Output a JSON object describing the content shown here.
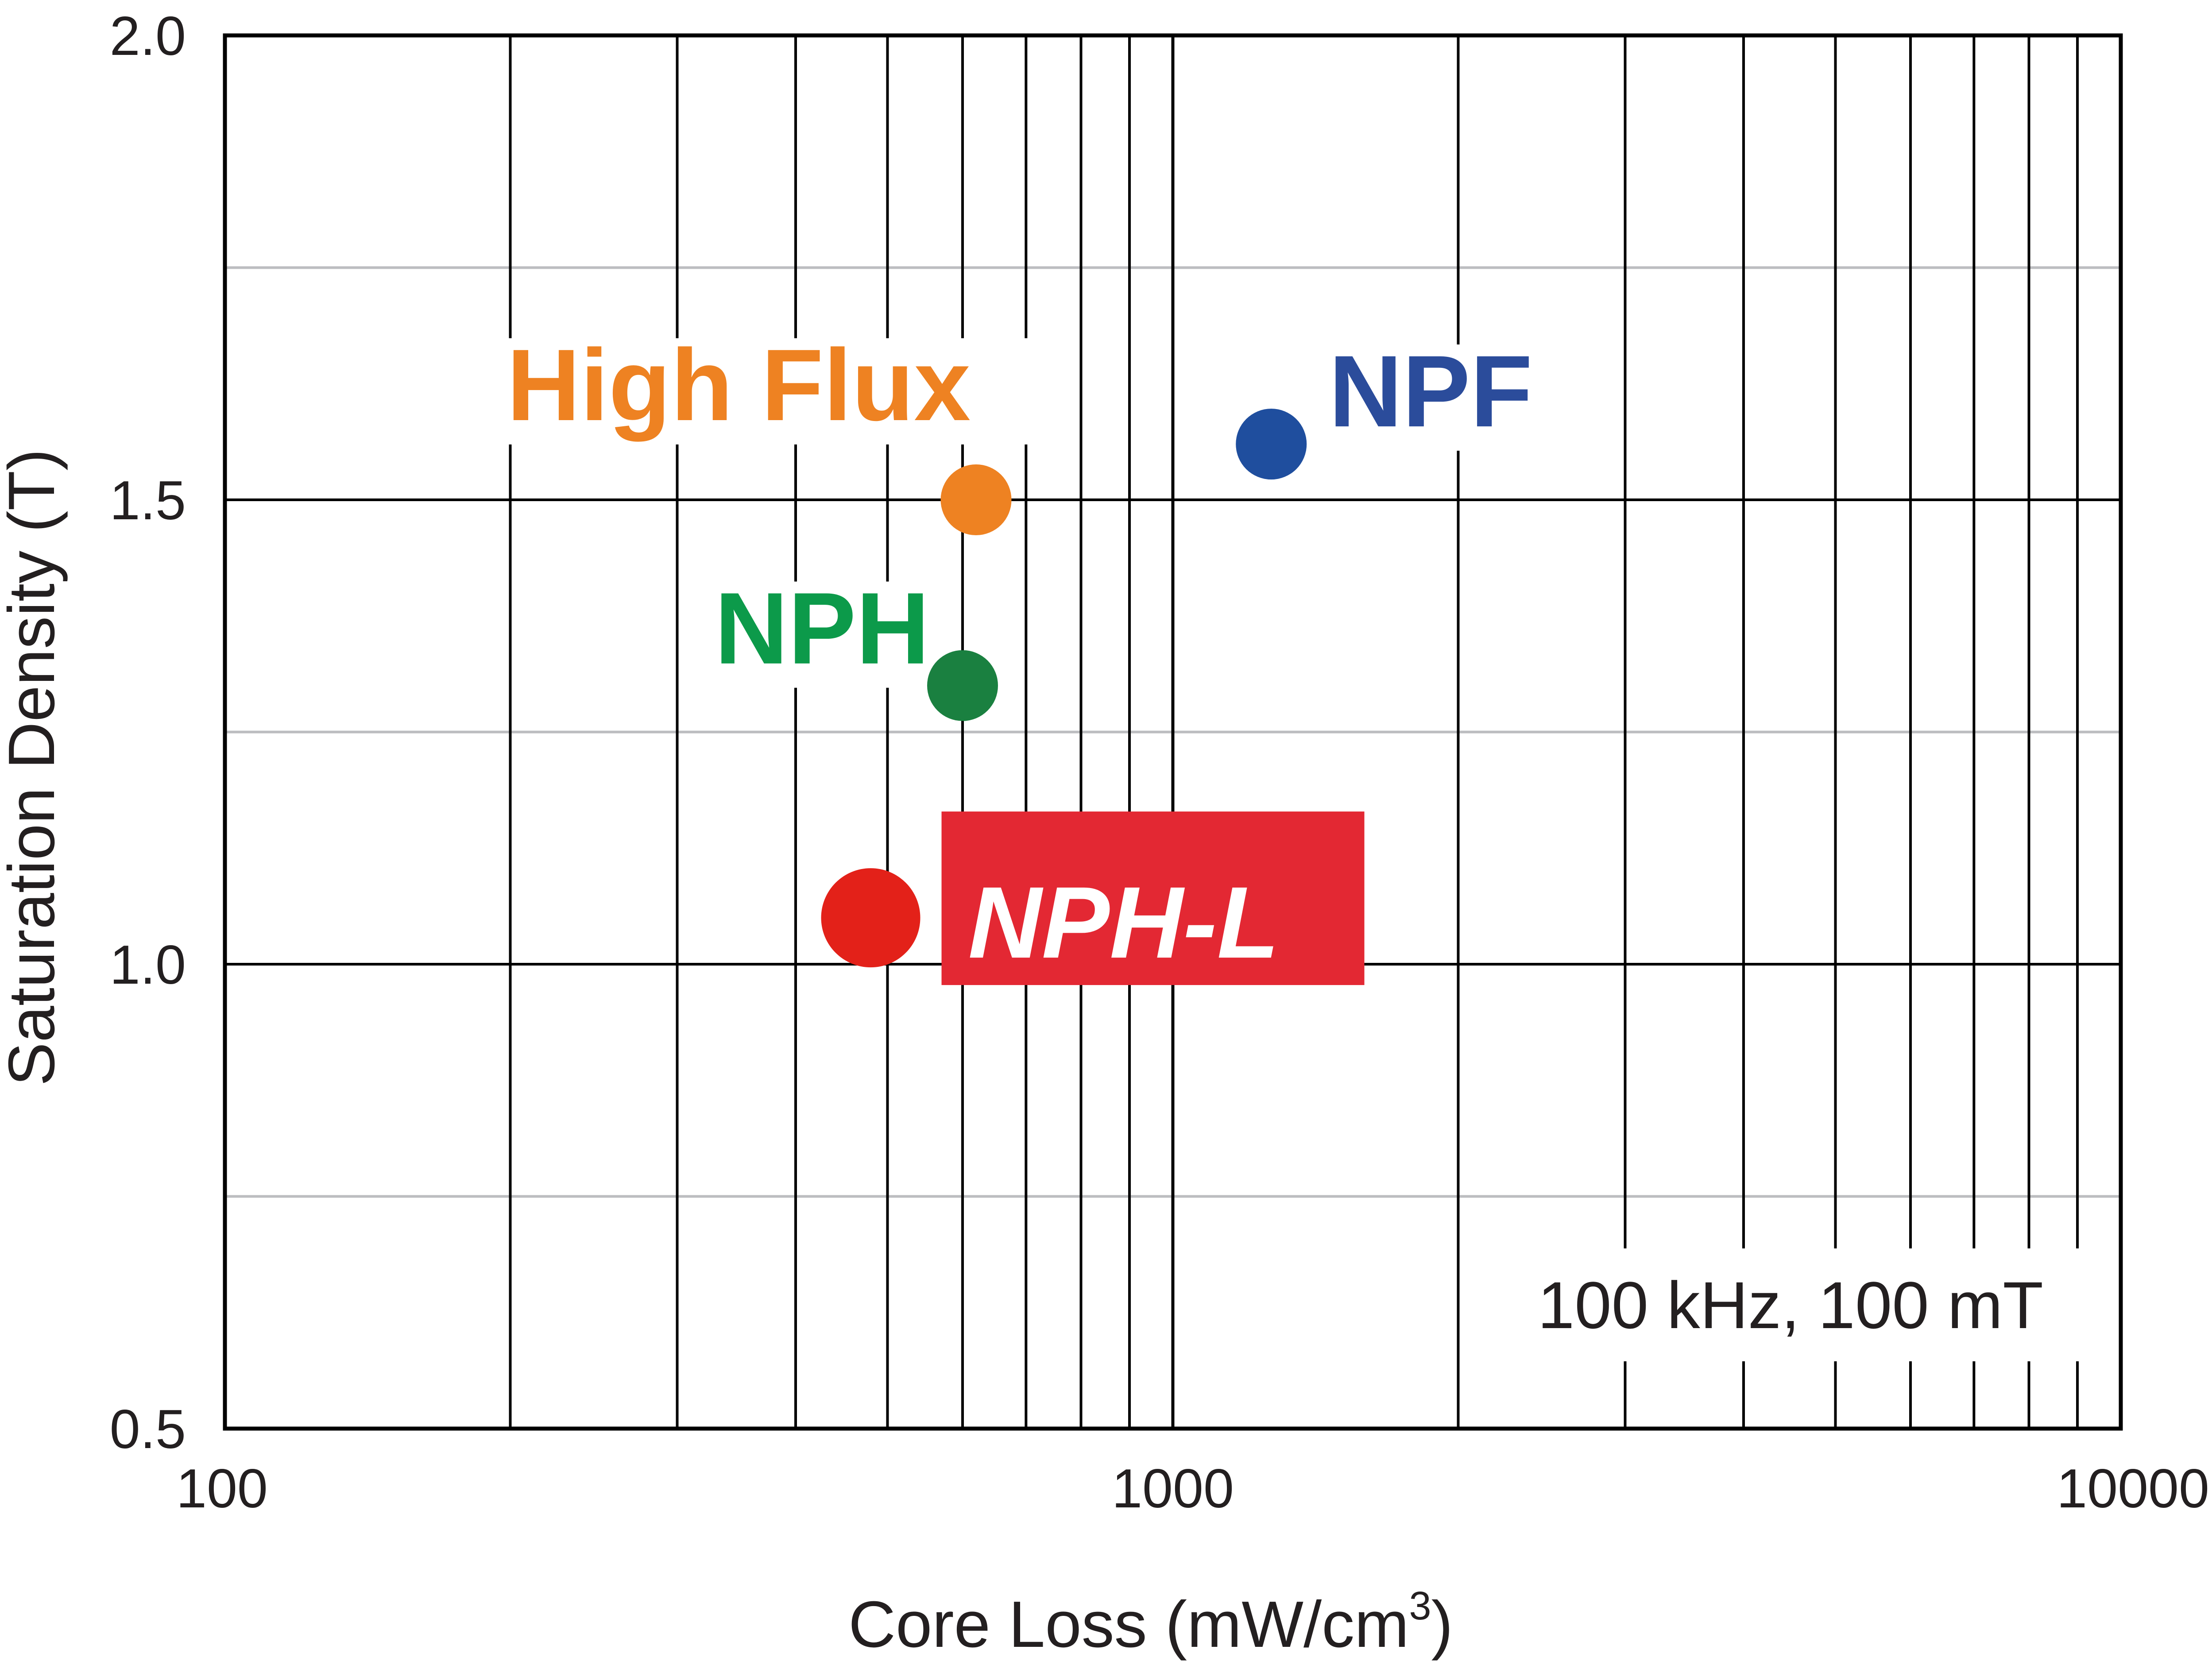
{
  "chart_data": {
    "type": "scatter",
    "title": "",
    "xlabel": "Core Loss (mW/cm",
    "xlabel_superscript": "3",
    "xlabel_suffix": ")",
    "ylabel": "Saturation Density (T)",
    "xscale": "log",
    "xlim": [
      100,
      10000
    ],
    "ylim": [
      0.5,
      2.0
    ],
    "x_ticks": [
      100,
      1000,
      10000
    ],
    "x_tick_labels": [
      "100",
      "1000",
      "10000"
    ],
    "y_ticks": [
      0.5,
      1.0,
      1.5,
      2.0
    ],
    "y_tick_labels": [
      "0.5",
      "1.0",
      "1.5",
      "2.0"
    ],
    "y_minor_gridlines": [
      0.75,
      1.25,
      1.75
    ],
    "grid": true,
    "annotation": "100 kHz, 100 mT",
    "points": [
      {
        "name": "High Flux",
        "x": 620,
        "y": 1.5,
        "color": "#ee8222",
        "label_color": "#ee8222",
        "highlight": false
      },
      {
        "name": "NPF",
        "x": 1270,
        "y": 1.56,
        "color": "#1f4e9e",
        "label_color": "#2b4c9b",
        "highlight": false
      },
      {
        "name": "NPH",
        "x": 600,
        "y": 1.3,
        "color": "#1a8040",
        "label_color": "#0c9a4a",
        "highlight": false
      },
      {
        "name": "NPH-L",
        "x": 480,
        "y": 1.05,
        "color": "#e32119",
        "label_color": "#ffffff",
        "label_bg": "#e32833",
        "highlight": true
      }
    ]
  }
}
